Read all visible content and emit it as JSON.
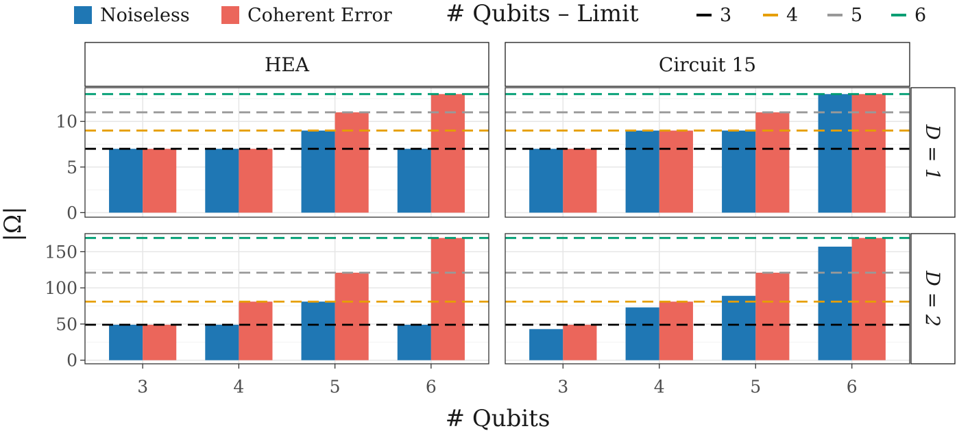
{
  "legend": {
    "fill_items": [
      {
        "label": "Noiseless",
        "color": "#1f77b4"
      },
      {
        "label": "Coherent Error",
        "color": "#eb665b"
      }
    ],
    "limit_title": "# Qubits – Limit",
    "limit_items": [
      {
        "label": "3",
        "color": "#000000"
      },
      {
        "label": "4",
        "color": "#e69f00"
      },
      {
        "label": "5",
        "color": "#999999"
      },
      {
        "label": "6",
        "color": "#009e73"
      }
    ]
  },
  "chart_data": {
    "type": "bar",
    "xlabel": "# Qubits",
    "ylabel": "|Ω|",
    "categories": [
      "3",
      "4",
      "5",
      "6"
    ],
    "columns": [
      "HEA",
      "Circuit 15"
    ],
    "rows": [
      "D = 1",
      "D = 2"
    ],
    "panels": [
      {
        "column": "HEA",
        "row": "D = 1",
        "ylim": [
          -0.5,
          13.7
        ],
        "yticks": [
          0,
          5,
          10
        ],
        "series": [
          {
            "name": "Noiseless",
            "values": [
              7,
              7,
              9,
              7
            ]
          },
          {
            "name": "Coherent Error",
            "values": [
              7,
              7,
              11,
              13
            ]
          }
        ],
        "limits": [
          7,
          9,
          11,
          13
        ]
      },
      {
        "column": "Circuit 15",
        "row": "D = 1",
        "ylim": [
          -0.5,
          13.7
        ],
        "yticks": [
          0,
          5,
          10
        ],
        "series": [
          {
            "name": "Noiseless",
            "values": [
              7,
              9,
              9,
              13
            ]
          },
          {
            "name": "Coherent Error",
            "values": [
              7,
              9,
              11,
              13
            ]
          }
        ],
        "limits": [
          7,
          9,
          11,
          13
        ]
      },
      {
        "column": "HEA",
        "row": "D = 2",
        "ylim": [
          -5,
          175
        ],
        "yticks": [
          0,
          50,
          100,
          150
        ],
        "series": [
          {
            "name": "Noiseless",
            "values": [
              49,
              49,
              81,
              49
            ]
          },
          {
            "name": "Coherent Error",
            "values": [
              49,
              81,
              121,
              169
            ]
          }
        ],
        "limits": [
          49,
          81,
          121,
          169
        ]
      },
      {
        "column": "Circuit 15",
        "row": "D = 2",
        "ylim": [
          -5,
          175
        ],
        "yticks": [
          0,
          50,
          100,
          150
        ],
        "series": [
          {
            "name": "Noiseless",
            "values": [
              43,
              73,
              89,
              157
            ]
          },
          {
            "name": "Coherent Error",
            "values": [
              49,
              81,
              121,
              169
            ]
          }
        ],
        "limits": [
          49,
          81,
          121,
          169
        ]
      }
    ],
    "limit_colors": [
      "#000000",
      "#e69f00",
      "#999999",
      "#009e73"
    ],
    "series_colors": [
      "#1f77b4",
      "#eb665b"
    ],
    "grid": true,
    "legend_position": "top"
  }
}
